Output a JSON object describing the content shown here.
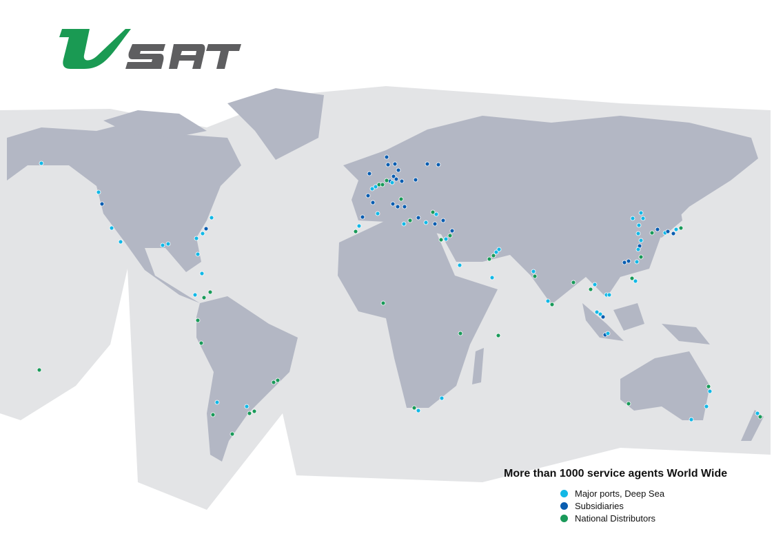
{
  "logo": {
    "text": "VSAT",
    "colors": {
      "v": "#1a9a53",
      "sat": "#5e5e60"
    }
  },
  "map": {
    "land_color": "#b3b7c4",
    "ocean_zone_color": "#e3e4e6",
    "markers_note_visible": false
  },
  "legend": {
    "title": "More than 1000 service agents World Wide",
    "items": [
      {
        "label": "Major ports, Deep Sea",
        "color": "#13b8e6"
      },
      {
        "label": "Subsidiaries",
        "color": "#0a5db0"
      },
      {
        "label": "National Distributors",
        "color": "#1a9a5a"
      }
    ]
  }
}
